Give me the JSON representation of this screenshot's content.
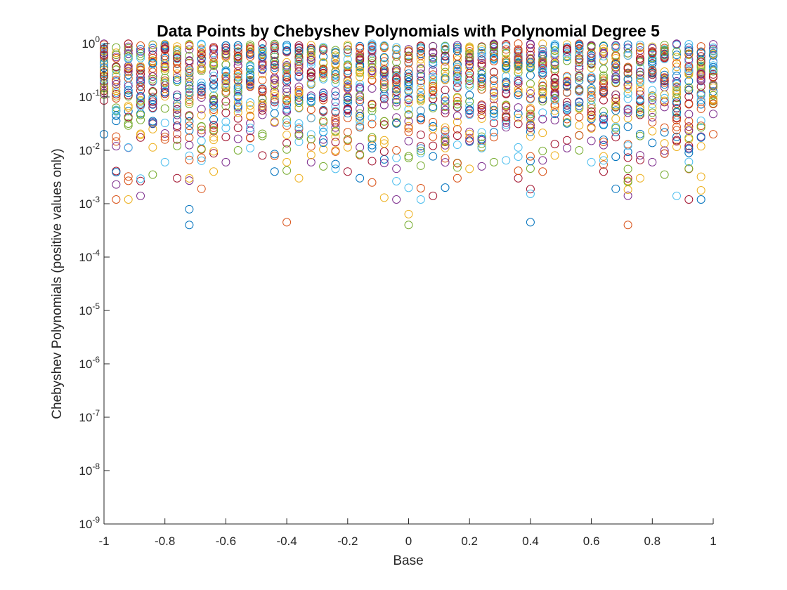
{
  "chart_data": {
    "type": "scatter",
    "title": "Data Points by Chebyshev Polynomials with Polynomial Degree 5",
    "xlabel": "Base",
    "ylabel": "Chebyshev Polynomials (positive values only)",
    "xlim": [
      -1,
      1
    ],
    "ylim": [
      1e-09,
      1
    ],
    "yscale": "log",
    "marker": "open circle",
    "grid": false,
    "legend": "none",
    "x_ticks": [
      -1,
      -0.8,
      -0.6,
      -0.4,
      -0.2,
      0,
      0.2,
      0.4,
      0.6,
      0.8,
      1
    ],
    "x_tick_labels": [
      "-1",
      "-0.8",
      "-0.6",
      "-0.4",
      "-0.2",
      "0",
      "0.2",
      "0.4",
      "0.6",
      "0.8",
      "1"
    ],
    "y_ticks": [
      {
        "base": "10",
        "exp": "-9"
      },
      {
        "base": "10",
        "exp": "-8"
      },
      {
        "base": "10",
        "exp": "-7"
      },
      {
        "base": "10",
        "exp": "-6"
      },
      {
        "base": "10",
        "exp": "-5"
      },
      {
        "base": "10",
        "exp": "-4"
      },
      {
        "base": "10",
        "exp": "-3"
      },
      {
        "base": "10",
        "exp": "-2"
      },
      {
        "base": "10",
        "exp": "-1"
      },
      {
        "base": "10",
        "exp": "0"
      }
    ],
    "series_colors": [
      "#0072BD",
      "#D95319",
      "#EDB120",
      "#7E2F8E",
      "#77AC30",
      "#4DBEEE",
      "#A2142F"
    ],
    "x_values": [
      -1,
      -0.96,
      -0.92,
      -0.88,
      -0.84,
      -0.8,
      -0.76,
      -0.72,
      -0.68,
      -0.64,
      -0.6,
      -0.56,
      -0.52,
      -0.48,
      -0.44,
      -0.4,
      -0.36,
      -0.32,
      -0.28,
      -0.24,
      -0.2,
      -0.16,
      -0.12,
      -0.08,
      -0.04,
      0,
      0.04,
      0.08,
      0.12,
      0.16,
      0.2,
      0.24,
      0.28,
      0.32,
      0.36,
      0.4,
      0.44,
      0.48,
      0.52,
      0.56,
      0.6,
      0.64,
      0.68,
      0.72,
      0.76,
      0.8,
      0.84,
      0.88,
      0.92,
      0.96,
      1
    ],
    "points_per_column": 40,
    "column_min_values": [
      0.02,
      0.0012,
      0.0012,
      0.0014,
      0.0035,
      0.006,
      0.003,
      0.0004,
      0.0019,
      0.004,
      0.006,
      0.01,
      0.011,
      0.008,
      0.004,
      0.00045,
      0.003,
      0.006,
      0.005,
      0.0045,
      0.004,
      0.003,
      0.0025,
      0.0013,
      0.0012,
      0.0004,
      0.0012,
      0.0014,
      0.002,
      0.003,
      0.0045,
      0.005,
      0.006,
      0.0065,
      0.003,
      0.00045,
      0.004,
      0.008,
      0.011,
      0.01,
      0.006,
      0.004,
      0.0019,
      0.0004,
      0.003,
      0.006,
      0.0035,
      0.0014,
      0.0012,
      0.0012,
      0.02
    ]
  }
}
